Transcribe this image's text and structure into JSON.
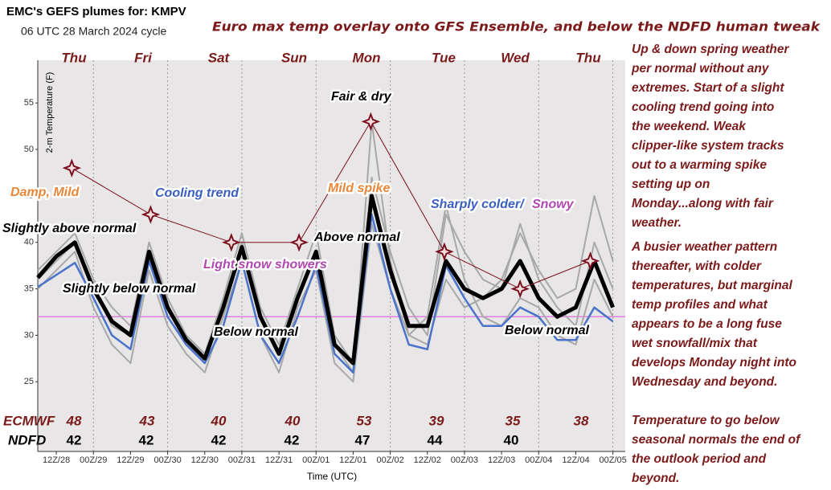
{
  "chart_data": {
    "type": "line",
    "title": "EMC's GEFS plumes for: KMPV",
    "subtitle": "06 UTC 28 March 2024 cycle",
    "header": "Euro max temp overlay onto GFS Ensemble, and below the NDFD human tweak",
    "y_label": "2-m Temperature (F)",
    "x_label": "Time (UTC)",
    "ylim": [
      17.5,
      59.6
    ],
    "yticks": [
      25,
      30,
      35,
      40,
      45,
      50,
      55
    ],
    "xlim": [
      0,
      190
    ],
    "xticks": [
      {
        "value": 6,
        "label": "12Z/28"
      },
      {
        "value": 18,
        "label": "00Z/29"
      },
      {
        "value": 30,
        "label": "12Z/29"
      },
      {
        "value": 42,
        "label": "00Z/30"
      },
      {
        "value": 54,
        "label": "12Z/30"
      },
      {
        "value": 66,
        "label": "00Z/31"
      },
      {
        "value": 78,
        "label": "12Z/31"
      },
      {
        "value": 90,
        "label": "00Z/01"
      },
      {
        "value": 102,
        "label": "12Z/01"
      },
      {
        "value": 114,
        "label": "00Z/02"
      },
      {
        "value": 126,
        "label": "12Z/02"
      },
      {
        "value": 138,
        "label": "00Z/03"
      },
      {
        "value": 150,
        "label": "12Z/03"
      },
      {
        "value": 162,
        "label": "00Z/04"
      },
      {
        "value": 174,
        "label": "12Z/04"
      },
      {
        "value": 186,
        "label": "00Z/05"
      }
    ],
    "grid": "x",
    "freeze_line": 32,
    "freeze_color": "#e080e0",
    "x": [
      0,
      6,
      12,
      18,
      24,
      30,
      36,
      42,
      48,
      54,
      60,
      66,
      72,
      78,
      84,
      90,
      96,
      102,
      108,
      114,
      120,
      126,
      132,
      138,
      144,
      150,
      156,
      162,
      168,
      174,
      180,
      186
    ],
    "series": [
      {
        "color": "#a8a8a8",
        "width": 2,
        "values": [
          37,
          39,
          41,
          36,
          33,
          31,
          40,
          34,
          30,
          28,
          34,
          41,
          33,
          29,
          35,
          41,
          30,
          27,
          47,
          39,
          33,
          30,
          43,
          39,
          36,
          35,
          42,
          36,
          33,
          31,
          40,
          35
        ]
      },
      {
        "color": "#a8a8a8",
        "width": 2,
        "values": [
          35,
          37,
          39,
          33,
          29,
          27,
          37,
          31,
          28,
          26,
          32,
          38,
          30,
          26,
          33,
          37,
          27,
          25,
          42,
          35,
          30,
          32,
          44,
          36,
          32,
          31,
          34,
          33,
          30,
          29,
          36,
          32
        ]
      },
      {
        "color": "#a8a8a8",
        "width": 2,
        "values": [
          36,
          38,
          40,
          35,
          31,
          30,
          38,
          33,
          30,
          28,
          33,
          40,
          32,
          28,
          34,
          39,
          29,
          26,
          53,
          38,
          30,
          29,
          36,
          33,
          34,
          36,
          41,
          37,
          34,
          35,
          45,
          38
        ]
      },
      {
        "color": "#4a74c9",
        "width": 2.5,
        "values": [
          35.2,
          36.5,
          37.8,
          34,
          30,
          28.5,
          38,
          32,
          29,
          27,
          31,
          38,
          30,
          27,
          32,
          37.5,
          28,
          26,
          43,
          35,
          29,
          28.5,
          37.5,
          34,
          31,
          31,
          33,
          32,
          29.5,
          29.5,
          33,
          31.5
        ]
      },
      {
        "color": "#000000",
        "width": 5,
        "values": [
          36.2,
          38.5,
          40,
          35,
          31.5,
          30,
          39,
          33,
          29.5,
          27.5,
          33,
          39.5,
          32,
          28,
          34,
          39,
          29,
          27,
          45,
          37,
          31,
          31,
          38,
          35,
          34,
          35,
          38,
          34,
          32,
          33,
          38,
          33
        ]
      },
      {
        "name": "ECMWF",
        "color": "#7a1020",
        "width": 1,
        "markers": true,
        "x": [
          11,
          36.5,
          62.6,
          84.5,
          107.7,
          131.5,
          156,
          178.7
        ],
        "values": [
          48,
          43,
          40,
          40,
          53,
          39,
          35,
          38
        ]
      }
    ],
    "ndfd": {
      "name": "NDFD",
      "values": [
        42,
        42,
        42,
        42,
        47,
        44,
        40
      ]
    },
    "days": [
      "Thu",
      "Fri",
      "Sat",
      "Sun",
      "Mon",
      "Tue",
      "Wed",
      "Thu"
    ],
    "annotations": [
      {
        "text": "Damp, Mild",
        "color": "#e8873a"
      },
      {
        "text": "Cooling trend",
        "color": "#3b5fc0"
      },
      {
        "text": "Slightly above normal",
        "color": "#000000"
      },
      {
        "text": "Slightly below normal",
        "color": "#000000"
      },
      {
        "text": "Light snow showers",
        "color": "#b048b0"
      },
      {
        "text": "Below normal",
        "color": "#000000"
      },
      {
        "text": "Fair & dry",
        "color": "#000000"
      },
      {
        "text": "Mild spike",
        "color": "#e8873a"
      },
      {
        "text": "Above normal",
        "color": "#000000"
      },
      {
        "text": "Sharply colder/",
        "color": "#3b5fc0"
      },
      {
        "text": "Snowy",
        "color": "#b048b0"
      },
      {
        "text": "Below normal",
        "color": "#000000"
      }
    ],
    "notes": [
      [
        "Up & down spring weather",
        "per normal without any",
        "extremes. Start of a slight",
        "cooling trend going into",
        "the weekend.  Weak",
        "clipper-like system tracks",
        "out to a warming spike",
        "setting up on",
        "Monday...along with fair",
        "weather."
      ],
      [
        "A busier weather pattern",
        "thereafter, with colder",
        "temperatures, but marginal",
        "temp profiles and what",
        "appears to be a long fuse",
        "wet snowfall/mix that",
        "develops Monday night into",
        "Wednesday and beyond."
      ],
      [
        "Temperature to go below",
        "seasonal normals the end of",
        "the outlook period and",
        "beyond."
      ]
    ]
  }
}
